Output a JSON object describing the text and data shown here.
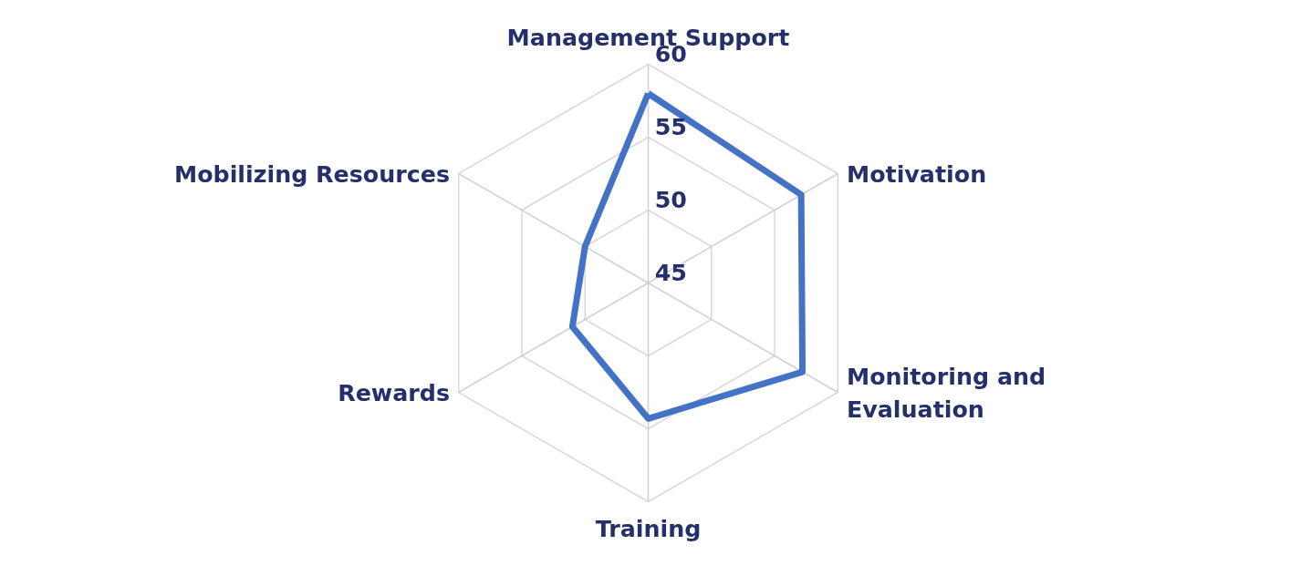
{
  "chart_data": {
    "type": "radar",
    "categories": [
      "Management Support",
      "Motivation",
      "Monitoring and Evaluation",
      "Training",
      "Rewards",
      "Mobilizing Resources"
    ],
    "series": [
      {
        "color": "#4472c4",
        "values": [
          58.0,
          57.1,
          57.2,
          54.3,
          51.0,
          50.0
        ]
      }
    ],
    "ylim": [
      45,
      60
    ],
    "yticks": [
      45,
      50,
      55,
      60
    ],
    "grid": true,
    "marker": "none",
    "line_style": "solid"
  }
}
